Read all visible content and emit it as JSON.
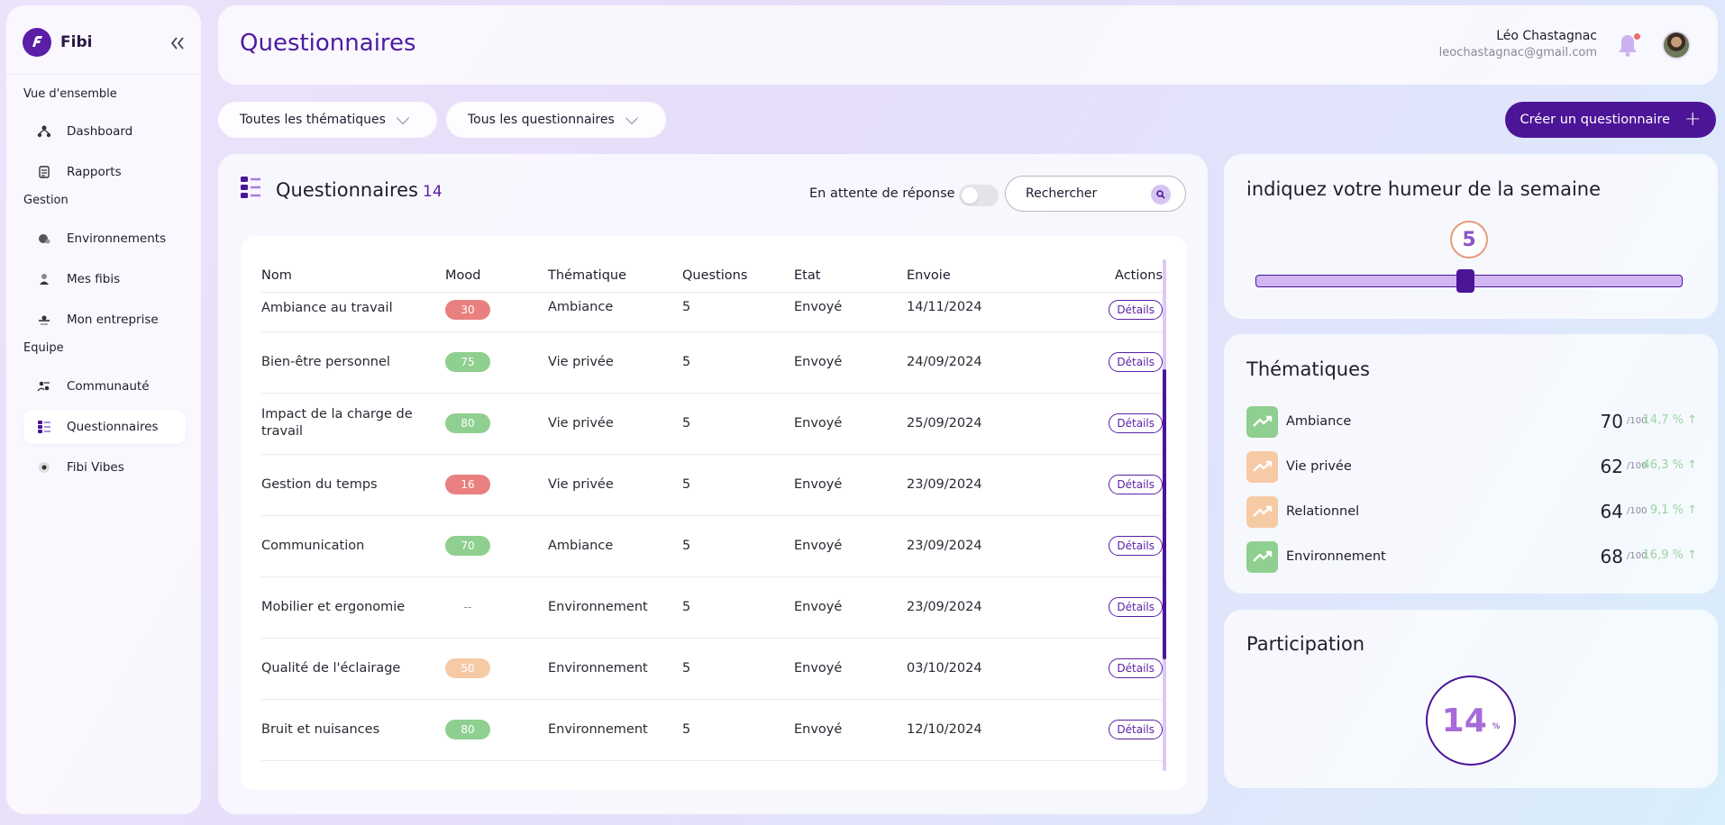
{
  "app": {
    "name": "Fibi"
  },
  "sidebar": {
    "sections": [
      {
        "title": "Vue d'ensemble"
      },
      {
        "title": "Gestion"
      },
      {
        "title": "Equipe"
      }
    ],
    "items": [
      {
        "label": "Dashboard",
        "icon": "dashboard-icon"
      },
      {
        "label": "Rapports",
        "icon": "reports-icon"
      },
      {
        "label": "Environnements",
        "icon": "environment-icon"
      },
      {
        "label": "Mes fibis",
        "icon": "fibis-icon"
      },
      {
        "label": "Mon entreprise",
        "icon": "company-icon"
      },
      {
        "label": "Communauté",
        "icon": "community-icon"
      },
      {
        "label": "Questionnaires",
        "icon": "questionnaires-icon",
        "active": true
      },
      {
        "label": "Fibi Vibes",
        "icon": "vibes-icon"
      }
    ]
  },
  "header": {
    "title": "Questionnaires",
    "user_name": "Léo Chastagnac",
    "user_email": "leochastagnac@gmail.com"
  },
  "filters": {
    "themes": "Toutes les thématiques",
    "questionnaires": "Tous les questionnaires",
    "create_label": "Créer un questionnaire"
  },
  "main": {
    "title": "Questionnaires",
    "count": "14",
    "waiting_label": "En attente de réponse",
    "search_placeholder": "Rechercher",
    "columns": [
      "Nom",
      "Mood",
      "Thématique",
      "Questions",
      "Etat",
      "Envoie",
      "Actions"
    ],
    "rows": [
      {
        "name": "Ambiance au travail",
        "mood": "30",
        "mood_color": "#e98080",
        "theme": "Ambiance",
        "questions": "5",
        "state": "Envoyé",
        "sent": "14/11/2024",
        "action": "Détails"
      },
      {
        "name": "Bien-être personnel",
        "mood": "75",
        "mood_color": "#8fcf8f",
        "theme": "Vie privée",
        "questions": "5",
        "state": "Envoyé",
        "sent": "24/09/2024",
        "action": "Détails"
      },
      {
        "name": "Impact de la charge de travail",
        "mood": "80",
        "mood_color": "#8fcf8f",
        "theme": "Vie privée",
        "questions": "5",
        "state": "Envoyé",
        "sent": "25/09/2024",
        "action": "Détails"
      },
      {
        "name": "Gestion du temps",
        "mood": "16",
        "mood_color": "#e98080",
        "theme": "Vie privée",
        "questions": "5",
        "state": "Envoyé",
        "sent": "23/09/2024",
        "action": "Détails"
      },
      {
        "name": "Communication",
        "mood": "70",
        "mood_color": "#8fcf8f",
        "theme": "Ambiance",
        "questions": "5",
        "state": "Envoyé",
        "sent": "23/09/2024",
        "action": "Détails"
      },
      {
        "name": "Mobilier et ergonomie",
        "mood": "--",
        "mood_color": "",
        "theme": "Environnement",
        "questions": "5",
        "state": "Envoyé",
        "sent": "23/09/2024",
        "action": "Détails"
      },
      {
        "name": "Qualité de l'éclairage",
        "mood": "50",
        "mood_color": "#f7caa6",
        "theme": "Environnement",
        "questions": "5",
        "state": "Envoyé",
        "sent": "03/10/2024",
        "action": "Détails"
      },
      {
        "name": "Bruit et nuisances",
        "mood": "80",
        "mood_color": "#8fcf8f",
        "theme": "Environnement",
        "questions": "5",
        "state": "Envoyé",
        "sent": "12/10/2024",
        "action": "Détails"
      }
    ]
  },
  "mood_card": {
    "title": "indiquez votre humeur de la semaine",
    "value": "5",
    "level": 0.5
  },
  "themes_card": {
    "title": "Thématiques",
    "items": [
      {
        "name": "Ambiance",
        "score": "70",
        "max": "/100",
        "pct": "14,7 % ↑",
        "color": "#8fcf8f"
      },
      {
        "name": "Vie privée",
        "score": "62",
        "max": "/100",
        "pct": "46,3 % ↑",
        "color": "#f7caa6"
      },
      {
        "name": "Relationnel",
        "score": "64",
        "max": "/100",
        "pct": "9,1 % ↑",
        "color": "#f7caa6"
      },
      {
        "name": "Environnement",
        "score": "68",
        "max": "/100",
        "pct": "16,9 % ↑",
        "color": "#8fcf8f"
      }
    ]
  },
  "participation": {
    "title": "Participation",
    "value": "14",
    "unit": "%"
  },
  "colors": {
    "accent": "#4c1497",
    "title": "#4e1aa1"
  }
}
